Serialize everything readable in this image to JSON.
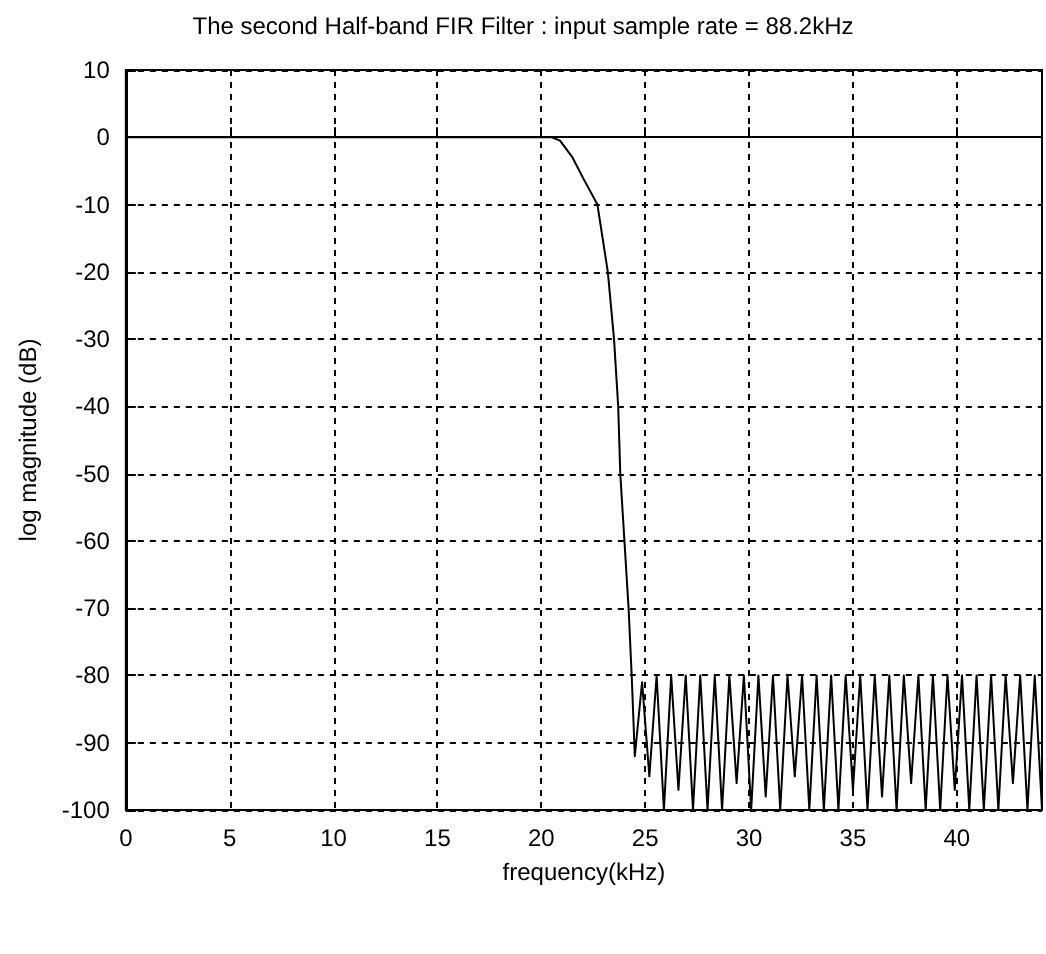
{
  "chart_data": {
    "type": "line",
    "title": "The second Half-band FIR Filter : input sample rate = 88.2kHz",
    "xlabel": "frequency(kHz)",
    "ylabel": "log magnitude (dB)",
    "x": [
      0,
      20.5,
      20.9,
      21.5,
      22,
      22.7,
      23.2,
      23.5,
      23.7,
      23.8,
      24.0,
      24.2,
      24.35,
      24.5,
      24.85,
      25.2,
      25.55,
      25.9,
      26.25,
      26.6,
      26.95,
      27.3,
      27.65,
      28.0,
      28.35,
      28.7,
      29.05,
      29.4,
      29.75,
      30.1,
      30.45,
      30.8,
      31.15,
      31.5,
      31.85,
      32.2,
      32.55,
      32.9,
      33.25,
      33.6,
      33.95,
      34.3,
      34.65,
      35.0,
      35.35,
      35.7,
      36.05,
      36.4,
      36.75,
      37.1,
      37.45,
      37.8,
      38.15,
      38.5,
      38.85,
      39.2,
      39.55,
      39.9,
      40.25,
      40.6,
      40.95,
      41.3,
      41.65,
      42.0,
      42.35,
      42.7,
      43.05,
      43.4,
      43.75,
      44.1
    ],
    "series": [
      {
        "color": "#000000",
        "values": [
          0,
          0,
          -0.5,
          -3,
          -6,
          -10,
          -20,
          -30,
          -40,
          -50,
          -60,
          -70,
          -80,
          -92,
          -81,
          -95,
          -80,
          -100,
          -80,
          -97,
          -80,
          -100,
          -80,
          -100,
          -80,
          -100,
          -80,
          -96,
          -80,
          -100,
          -80,
          -98,
          -80,
          -100,
          -80,
          -95,
          -80,
          -100,
          -80,
          -100,
          -80,
          -100,
          -80,
          -97,
          -80,
          -100,
          -80,
          -98,
          -80,
          -100,
          -80,
          -96,
          -80,
          -100,
          -80,
          -100,
          -80,
          -97,
          -80,
          -100,
          -80,
          -100,
          -80,
          -100,
          -80,
          -96,
          -80,
          -100,
          -80,
          -100
        ]
      }
    ],
    "xlim": [
      0,
      44.1
    ],
    "xticks": [
      0,
      5,
      10,
      15,
      20,
      25,
      30,
      35,
      40
    ],
    "ylim": [
      -100,
      10
    ],
    "yticks": [
      -100,
      -90,
      -80,
      -70,
      -60,
      -50,
      -40,
      -30,
      -20,
      -10,
      0,
      10
    ],
    "grid": true,
    "marker": "none",
    "line_style": "solid"
  }
}
